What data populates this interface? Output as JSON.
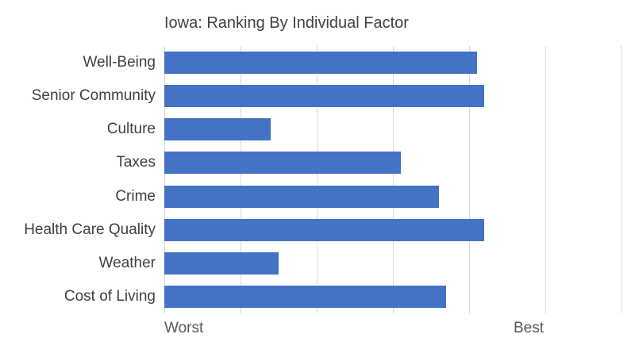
{
  "chart_data": {
    "type": "bar",
    "orientation": "horizontal",
    "title": "Iowa: Ranking By Individual Factor",
    "categories": [
      "Well-Being",
      "Senior Community",
      "Culture",
      "Taxes",
      "Crime",
      "Health Care Quality",
      "Weather",
      "Cost of Living"
    ],
    "values": [
      41,
      42,
      14,
      31,
      36,
      42,
      15,
      37
    ],
    "xlim": [
      0,
      60
    ],
    "tick_step": 10,
    "x_axis_labels": {
      "min": "Worst",
      "max": "Best"
    },
    "grid": true,
    "legend": "none",
    "bar_color": "#4472C4",
    "gridline_color": "#D9D9D9",
    "title_color": "#404040",
    "category_label_color": "#404040",
    "axis_label_color": "#595959",
    "background_color": "#FFFFFF"
  }
}
